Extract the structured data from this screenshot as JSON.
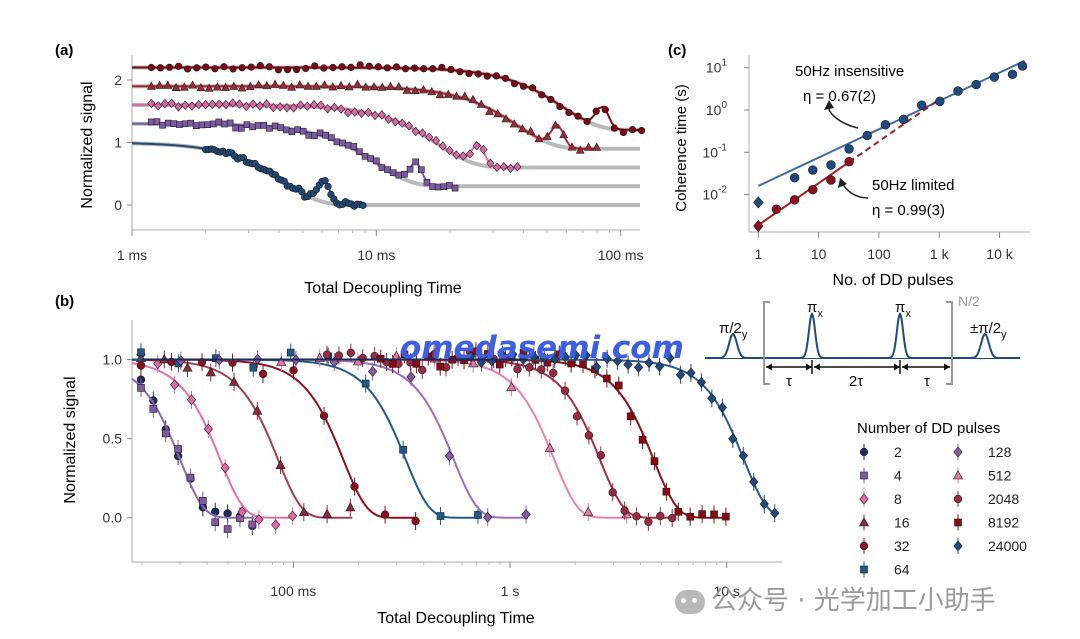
{
  "chart_data": [
    {
      "panel": "(a)",
      "type": "scatter",
      "xlabel": "Total Decoupling Time",
      "ylabel": "Normalized signal",
      "xscale": "log",
      "xlim": [
        "1 ms",
        "100 ms"
      ],
      "ylim": [
        -0.4,
        2.4
      ],
      "x_ticks": [
        "1 ms",
        "10 ms",
        "100 ms"
      ],
      "y_ticks": [
        "0",
        "1",
        "2"
      ],
      "note": "Decays offset vertically (baselines 0, 0.3, 0.6, 0.9, 1.2)",
      "series": [
        {
          "color": "#1f4a78",
          "decay_ms": 4.2,
          "offset": 0.0
        },
        {
          "color": "#7b5aa3",
          "decay_ms": 10.0,
          "offset": 0.3
        },
        {
          "color": "#d86aa6",
          "decay_ms": 18.0,
          "offset": 0.6
        },
        {
          "color": "#a02a3a",
          "decay_ms": 38.0,
          "offset": 0.9
        },
        {
          "color": "#7a0a14",
          "decay_ms": 58.0,
          "offset": 1.2
        }
      ]
    },
    {
      "panel": "(b)",
      "type": "scatter",
      "xlabel": "Total Decoupling Time",
      "ylabel": "Normalized signal",
      "xscale": "log",
      "xlim_s": [
        0.018,
        18
      ],
      "ylim": [
        -0.25,
        1.25
      ],
      "x_ticks": [
        "100 ms",
        "1 s",
        "10 s"
      ],
      "y_ticks": [
        "0.0",
        "0.5",
        "1.0"
      ],
      "legend_title": "Number of DD pulses",
      "series": [
        {
          "name": "2",
          "color": "#1a2a5a",
          "marker": "circle",
          "T_s": 0.03
        },
        {
          "name": "4",
          "color": "#7b5aa3",
          "marker": "square",
          "T_s": 0.03
        },
        {
          "name": "8",
          "color": "#e06aa8",
          "marker": "diamond",
          "T_s": 0.046
        },
        {
          "name": "16",
          "color": "#8a2a3a",
          "marker": "triangle",
          "T_s": 0.085
        },
        {
          "name": "32",
          "color": "#8e1020",
          "marker": "circle",
          "T_s": 0.17
        },
        {
          "name": "64",
          "color": "#1f5a8a",
          "marker": "square",
          "T_s": 0.33
        },
        {
          "name": "128",
          "color": "#8a5aa8",
          "marker": "diamond",
          "T_s": 0.55
        },
        {
          "name": "512",
          "color": "#e07aa0",
          "marker": "triangle",
          "T_s": 1.6
        },
        {
          "name": "2048",
          "color": "#9a2a44",
          "marker": "circle",
          "T_s": 2.6
        },
        {
          "name": "8192",
          "color": "#8a0a10",
          "marker": "square",
          "T_s": 4.6
        },
        {
          "name": "24000",
          "color": "#1f4a80",
          "marker": "diamond",
          "T_s": 12.0
        }
      ]
    },
    {
      "panel": "(c)",
      "type": "scatter",
      "xlabel": "No. of DD pulses",
      "ylabel": "Coherence time (s)",
      "xscale": "log",
      "yscale": "log",
      "x_ticks": [
        "1",
        "10",
        "100",
        "1 k",
        "10 k"
      ],
      "y_ticks": [
        "10^-2",
        "10^-1",
        "10^0",
        "10^1"
      ],
      "series": [
        {
          "name": "50Hz insensitive",
          "color": "#1f4a80",
          "x": [
            1,
            4,
            8,
            16,
            32,
            64,
            128,
            256,
            512,
            1024,
            2048,
            4096,
            8192,
            16384,
            24000
          ],
          "y": [
            0.0065,
            0.025,
            0.038,
            0.05,
            0.12,
            0.25,
            0.45,
            0.6,
            1.3,
            1.6,
            2.8,
            4.0,
            6.0,
            7.0,
            11.0
          ]
        },
        {
          "name": "50Hz limited",
          "color": "#8e1020",
          "x": [
            1,
            2,
            4,
            8,
            16,
            32
          ],
          "y": [
            0.0018,
            0.0045,
            0.0075,
            0.013,
            0.022,
            0.06
          ]
        }
      ],
      "annotations": [
        {
          "text": "50Hz insensitive",
          "value": "η = 0.67(2)"
        },
        {
          "text": "50Hz limited",
          "value": "η = 0.99(3)"
        }
      ]
    }
  ],
  "labels": {
    "panel_a": "(a)",
    "panel_b": "(b)",
    "panel_c": "(c)",
    "a_xlabel": "Total Decoupling Time",
    "a_ylabel": "Normalized signal",
    "b_xlabel": "Total Decoupling Time",
    "b_ylabel": "Normalized signal",
    "c_xlabel": "No. of DD pulses",
    "c_ylabel": "Coherence time (s)",
    "legend_title": "Number of DD pulses",
    "ann_insensitive": "50Hz insensitive",
    "eta_insensitive": "η = 0.67(2)",
    "ann_limited": "50Hz limited",
    "eta_limited": "η = 0.99(3)",
    "pulse_pi2y": "π/2",
    "pulse_pix": "π",
    "pulse_pmpi2y": "±π/2",
    "sub_y": "y",
    "sub_x": "x",
    "n2": "N/2",
    "tau": "τ",
    "two_tau": "2τ",
    "watermark": "omedasemi.com",
    "wechat": "公众号 · 光学加工小助手"
  }
}
